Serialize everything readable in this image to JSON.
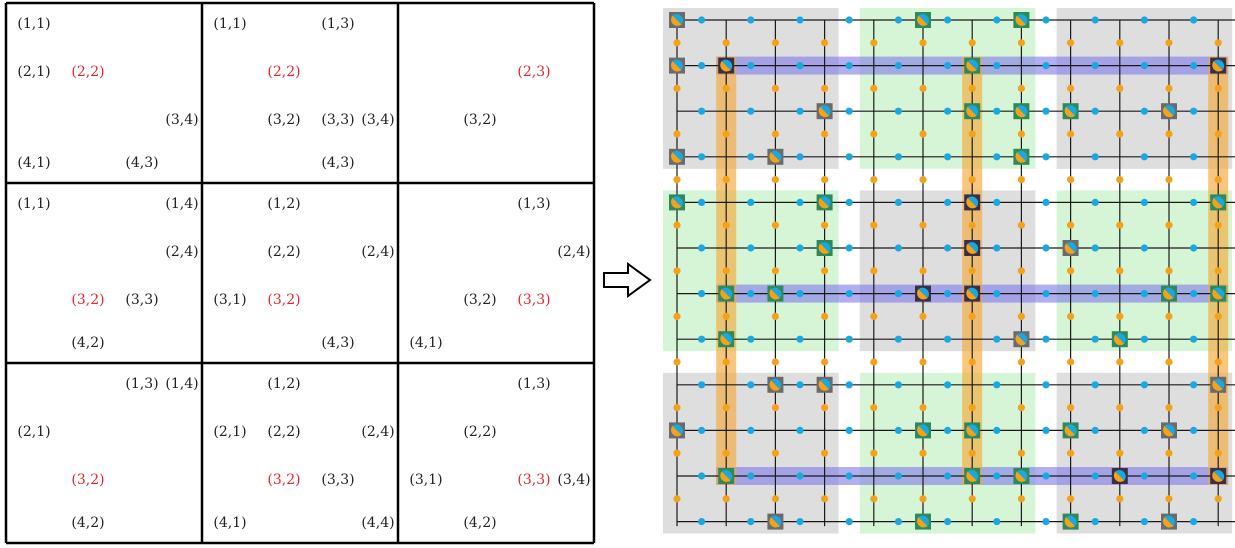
{
  "left_panel": {
    "blocks": [
      {
        "labels": [
          {
            "text": "(1,1)",
            "pos": "r1c1",
            "hl": false
          },
          {
            "text": "(2,1)",
            "pos": "r2c1",
            "hl": false
          },
          {
            "text": "(2,2)",
            "pos": "r2c2",
            "hl": true
          },
          {
            "text": "(3,4)",
            "pos": "r3c4",
            "hl": false
          },
          {
            "text": "(4,1)",
            "pos": "r4c1",
            "hl": false
          },
          {
            "text": "(4,3)",
            "pos": "r4c3",
            "hl": false
          }
        ]
      },
      {
        "labels": [
          {
            "text": "(1,1)",
            "pos": "r1c1",
            "hl": false
          },
          {
            "text": "(1,3)",
            "pos": "r1c3",
            "hl": false
          },
          {
            "text": "(2,2)",
            "pos": "r2c2",
            "hl": true
          },
          {
            "text": "(3,2)",
            "pos": "r3c2",
            "hl": false
          },
          {
            "text": "(3,3)",
            "pos": "r3c3",
            "hl": false
          },
          {
            "text": "(3,4)",
            "pos": "r3c4",
            "hl": false
          },
          {
            "text": "(4,3)",
            "pos": "r4c3",
            "hl": false
          }
        ]
      },
      {
        "labels": [
          {
            "text": "(2,3)",
            "pos": "r2c3",
            "hl": true
          },
          {
            "text": "(3,2)",
            "pos": "r3c2",
            "hl": false
          }
        ]
      },
      {
        "labels": [
          {
            "text": "(1,1)",
            "pos": "r1c1",
            "hl": false
          },
          {
            "text": "(1,4)",
            "pos": "r1c4",
            "hl": false
          },
          {
            "text": "(2,4)",
            "pos": "r2c4",
            "hl": false
          },
          {
            "text": "(3,2)",
            "pos": "r3c2",
            "hl": true
          },
          {
            "text": "(3,3)",
            "pos": "r3c3",
            "hl": false
          },
          {
            "text": "(4,2)",
            "pos": "r4c2",
            "hl": false
          }
        ]
      },
      {
        "labels": [
          {
            "text": "(1,2)",
            "pos": "r1c2",
            "hl": false
          },
          {
            "text": "(2,2)",
            "pos": "r2c2",
            "hl": false
          },
          {
            "text": "(2,4)",
            "pos": "r2c4",
            "hl": false
          },
          {
            "text": "(3,1)",
            "pos": "r3c1",
            "hl": false
          },
          {
            "text": "(3,2)",
            "pos": "r3c2",
            "hl": true
          },
          {
            "text": "(4,3)",
            "pos": "r4c3",
            "hl": false
          }
        ]
      },
      {
        "labels": [
          {
            "text": "(1,3)",
            "pos": "r1c3",
            "hl": false
          },
          {
            "text": "(2,4)",
            "pos": "r2c4",
            "hl": false
          },
          {
            "text": "(3,2)",
            "pos": "r3c2",
            "hl": false
          },
          {
            "text": "(3,3)",
            "pos": "r3c3",
            "hl": true
          },
          {
            "text": "(4,1)",
            "pos": "r4c1",
            "hl": false
          }
        ]
      },
      {
        "labels": [
          {
            "text": "(1,3)",
            "pos": "r1c3",
            "hl": false
          },
          {
            "text": "(1,4)",
            "pos": "r1c4",
            "hl": false
          },
          {
            "text": "(2,1)",
            "pos": "r2c1",
            "hl": false
          },
          {
            "text": "(3,2)",
            "pos": "r3c2",
            "hl": true
          },
          {
            "text": "(4,2)",
            "pos": "r4c2",
            "hl": false
          }
        ]
      },
      {
        "labels": [
          {
            "text": "(1,2)",
            "pos": "r1c2",
            "hl": false
          },
          {
            "text": "(2,1)",
            "pos": "r2c1",
            "hl": false
          },
          {
            "text": "(2,2)",
            "pos": "r2c2",
            "hl": false
          },
          {
            "text": "(2,4)",
            "pos": "r2c4",
            "hl": false
          },
          {
            "text": "(3,2)",
            "pos": "r3c2",
            "hl": true
          },
          {
            "text": "(3,3)",
            "pos": "r3c3",
            "hl": false
          },
          {
            "text": "(4,1)",
            "pos": "r4c1",
            "hl": false
          },
          {
            "text": "(4,4)",
            "pos": "r4c4",
            "hl": false
          }
        ]
      },
      {
        "labels": [
          {
            "text": "(1,3)",
            "pos": "r1c3",
            "hl": false
          },
          {
            "text": "(2,2)",
            "pos": "r2c2",
            "hl": false
          },
          {
            "text": "(3,1)",
            "pos": "r3c1",
            "hl": false
          },
          {
            "text": "(3,3)",
            "pos": "r3c3",
            "hl": true
          },
          {
            "text": "(3,4)",
            "pos": "r3c4",
            "hl": false
          },
          {
            "text": "(4,2)",
            "pos": "r4c2",
            "hl": false
          }
        ]
      }
    ]
  },
  "right_panel": {
    "lattice_size": 12,
    "block_shading": [
      [
        "gray",
        "green",
        "gray"
      ],
      [
        "green",
        "gray",
        "green"
      ],
      [
        "gray",
        "green",
        "gray"
      ]
    ],
    "highlighted_rows": [
      1,
      6,
      10
    ],
    "highlighted_cols": [
      1,
      6,
      11
    ],
    "qubits": [
      {
        "r": 0,
        "c": 0,
        "kind": "gray"
      },
      {
        "r": 0,
        "c": 5,
        "kind": "green"
      },
      {
        "r": 0,
        "c": 7,
        "kind": "green"
      },
      {
        "r": 1,
        "c": 0,
        "kind": "gray"
      },
      {
        "r": 1,
        "c": 1,
        "kind": "dark"
      },
      {
        "r": 1,
        "c": 6,
        "kind": "green"
      },
      {
        "r": 1,
        "c": 11,
        "kind": "dark"
      },
      {
        "r": 2,
        "c": 3,
        "kind": "gray"
      },
      {
        "r": 2,
        "c": 6,
        "kind": "green"
      },
      {
        "r": 2,
        "c": 7,
        "kind": "green"
      },
      {
        "r": 2,
        "c": 8,
        "kind": "green"
      },
      {
        "r": 2,
        "c": 10,
        "kind": "gray"
      },
      {
        "r": 3,
        "c": 0,
        "kind": "gray"
      },
      {
        "r": 3,
        "c": 2,
        "kind": "gray"
      },
      {
        "r": 3,
        "c": 7,
        "kind": "green"
      },
      {
        "r": 4,
        "c": 0,
        "kind": "green"
      },
      {
        "r": 4,
        "c": 3,
        "kind": "green"
      },
      {
        "r": 4,
        "c": 6,
        "kind": "dark"
      },
      {
        "r": 4,
        "c": 11,
        "kind": "green"
      },
      {
        "r": 5,
        "c": 3,
        "kind": "green"
      },
      {
        "r": 5,
        "c": 6,
        "kind": "dark"
      },
      {
        "r": 5,
        "c": 8,
        "kind": "gray"
      },
      {
        "r": 5,
        "c": 12,
        "kind": "green"
      },
      {
        "r": 6,
        "c": 1,
        "kind": "green"
      },
      {
        "r": 6,
        "c": 2,
        "kind": "green"
      },
      {
        "r": 6,
        "c": 5,
        "kind": "dark"
      },
      {
        "r": 6,
        "c": 6,
        "kind": "dark"
      },
      {
        "r": 6,
        "c": 10,
        "kind": "green"
      },
      {
        "r": 6,
        "c": 11,
        "kind": "green"
      },
      {
        "r": 7,
        "c": 1,
        "kind": "green"
      },
      {
        "r": 7,
        "c": 7,
        "kind": "gray"
      },
      {
        "r": 7,
        "c": 9,
        "kind": "green"
      },
      {
        "r": 8,
        "c": 2,
        "kind": "gray"
      },
      {
        "r": 8,
        "c": 3,
        "kind": "gray"
      },
      {
        "r": 8,
        "c": 11,
        "kind": "gray"
      },
      {
        "r": 9,
        "c": 0,
        "kind": "gray"
      },
      {
        "r": 9,
        "c": 5,
        "kind": "green"
      },
      {
        "r": 9,
        "c": 6,
        "kind": "green"
      },
      {
        "r": 9,
        "c": 8,
        "kind": "green"
      },
      {
        "r": 9,
        "c": 10,
        "kind": "gray"
      },
      {
        "r": 10,
        "c": 1,
        "kind": "green"
      },
      {
        "r": 10,
        "c": 6,
        "kind": "green"
      },
      {
        "r": 10,
        "c": 7,
        "kind": "green"
      },
      {
        "r": 10,
        "c": 9,
        "kind": "dark"
      },
      {
        "r": 10,
        "c": 11,
        "kind": "dark"
      },
      {
        "r": 10,
        "c": 12,
        "kind": "gray"
      },
      {
        "r": 11,
        "c": 2,
        "kind": "gray"
      },
      {
        "r": 11,
        "c": 5,
        "kind": "green"
      },
      {
        "r": 11,
        "c": 8,
        "kind": "green"
      },
      {
        "r": 11,
        "c": 10,
        "kind": "gray"
      }
    ]
  },
  "colors": {
    "highlight_label": "#e5272b",
    "gray_shade": "#dedede",
    "green_shade": "#d6f5d6",
    "row_band": "#7d79e8",
    "col_band": "#f2a93b",
    "vertex_dot": "#19a8e0",
    "edge_dot": "#f2a21b",
    "qubit_gray": "#6b6b6b",
    "qubit_green": "#2e8a5a",
    "qubit_dark": "#3b2f45"
  }
}
